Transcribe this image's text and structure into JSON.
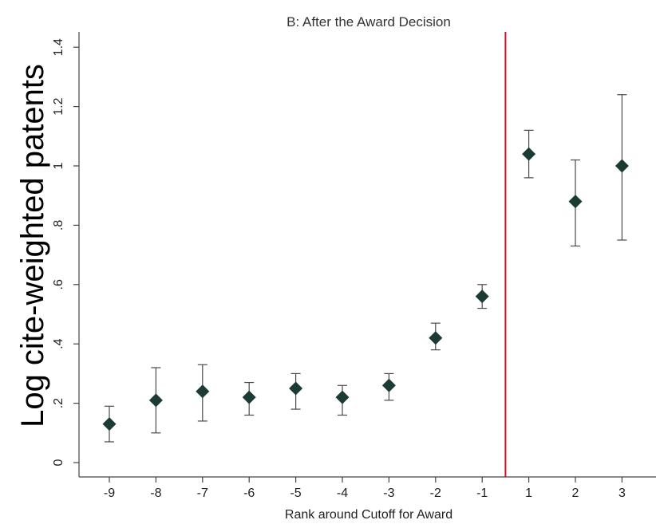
{
  "chart_data": {
    "type": "scatter",
    "title": "B: After the Award Decision",
    "xlabel": "Rank around Cutoff for Award",
    "ylabel": "Log cite-weighted patents",
    "x_tick_labels": [
      "-9",
      "-8",
      "-7",
      "-6",
      "-5",
      "-4",
      "-3",
      "-2",
      "-1",
      "1",
      "2",
      "3"
    ],
    "y_tick_labels": [
      "0",
      ".2",
      ".4",
      ".6",
      ".8",
      "1",
      "1.2",
      "1.4"
    ],
    "y_ticks": [
      0,
      0.2,
      0.4,
      0.6,
      0.8,
      1.0,
      1.2,
      1.4
    ],
    "ylim": [
      0,
      1.4
    ],
    "grid": false,
    "points": [
      {
        "x": "-9",
        "y": 0.13,
        "lo": 0.07,
        "hi": 0.19
      },
      {
        "x": "-8",
        "y": 0.21,
        "lo": 0.1,
        "hi": 0.32
      },
      {
        "x": "-7",
        "y": 0.24,
        "lo": 0.14,
        "hi": 0.33
      },
      {
        "x": "-6",
        "y": 0.22,
        "lo": 0.16,
        "hi": 0.27
      },
      {
        "x": "-5",
        "y": 0.25,
        "lo": 0.18,
        "hi": 0.3
      },
      {
        "x": "-4",
        "y": 0.22,
        "lo": 0.16,
        "hi": 0.26
      },
      {
        "x": "-3",
        "y": 0.26,
        "lo": 0.21,
        "hi": 0.3
      },
      {
        "x": "-2",
        "y": 0.42,
        "lo": 0.38,
        "hi": 0.47
      },
      {
        "x": "-1",
        "y": 0.56,
        "lo": 0.52,
        "hi": 0.6
      },
      {
        "x": "1",
        "y": 1.04,
        "lo": 0.96,
        "hi": 1.12
      },
      {
        "x": "2",
        "y": 0.88,
        "lo": 0.73,
        "hi": 1.02
      },
      {
        "x": "3",
        "y": 1.0,
        "lo": 0.75,
        "hi": 1.24
      }
    ],
    "cutoff_line": {
      "between": [
        "-1",
        "1"
      ],
      "color": "#c0182b"
    },
    "marker_color": "#1b3b34",
    "errorbar_color": "#4a4a4a",
    "axis_color": "#444444"
  }
}
